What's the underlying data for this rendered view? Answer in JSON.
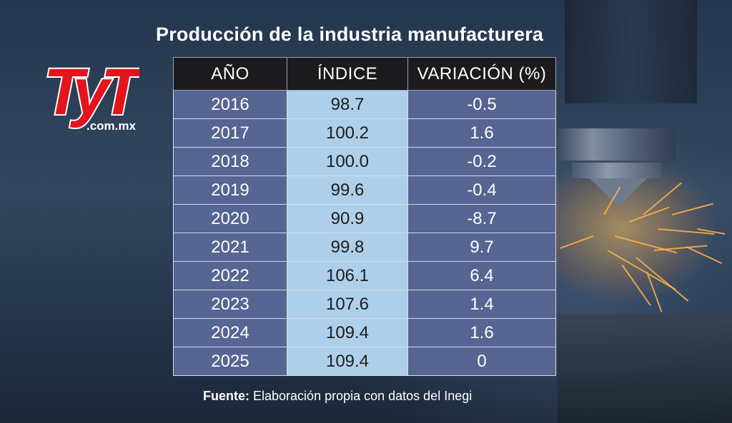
{
  "title": "Producción de la industria manufacturera",
  "logo": {
    "main": "TyT",
    "domain": ".com.mx"
  },
  "colors": {
    "header_bg": "#1b1b1d",
    "year_bg": "#566592",
    "index_bg": "#aecfea",
    "logo_red": "#e3141b"
  },
  "chart_data": {
    "type": "table",
    "title": "Producción de la industria manufacturera",
    "columns": [
      "AÑO",
      "ÍNDICE",
      "VARIACIÓN (%)"
    ],
    "rows": [
      [
        "2016",
        "98.7",
        "-0.5"
      ],
      [
        "2017",
        "100.2",
        "1.6"
      ],
      [
        "2018",
        "100.0",
        "-0.2"
      ],
      [
        "2019",
        "99.6",
        "-0.4"
      ],
      [
        "2020",
        "90.9",
        "-8.7"
      ],
      [
        "2021",
        "99.8",
        "9.7"
      ],
      [
        "2022",
        "106.1",
        "6.4"
      ],
      [
        "2023",
        "107.6",
        "1.4"
      ],
      [
        "2024",
        "109.4",
        "1.6"
      ],
      [
        "2025",
        "109.4",
        "0"
      ]
    ]
  },
  "source": {
    "label": "Fuente:",
    "text": "Elaboración propia con datos del Inegi"
  }
}
